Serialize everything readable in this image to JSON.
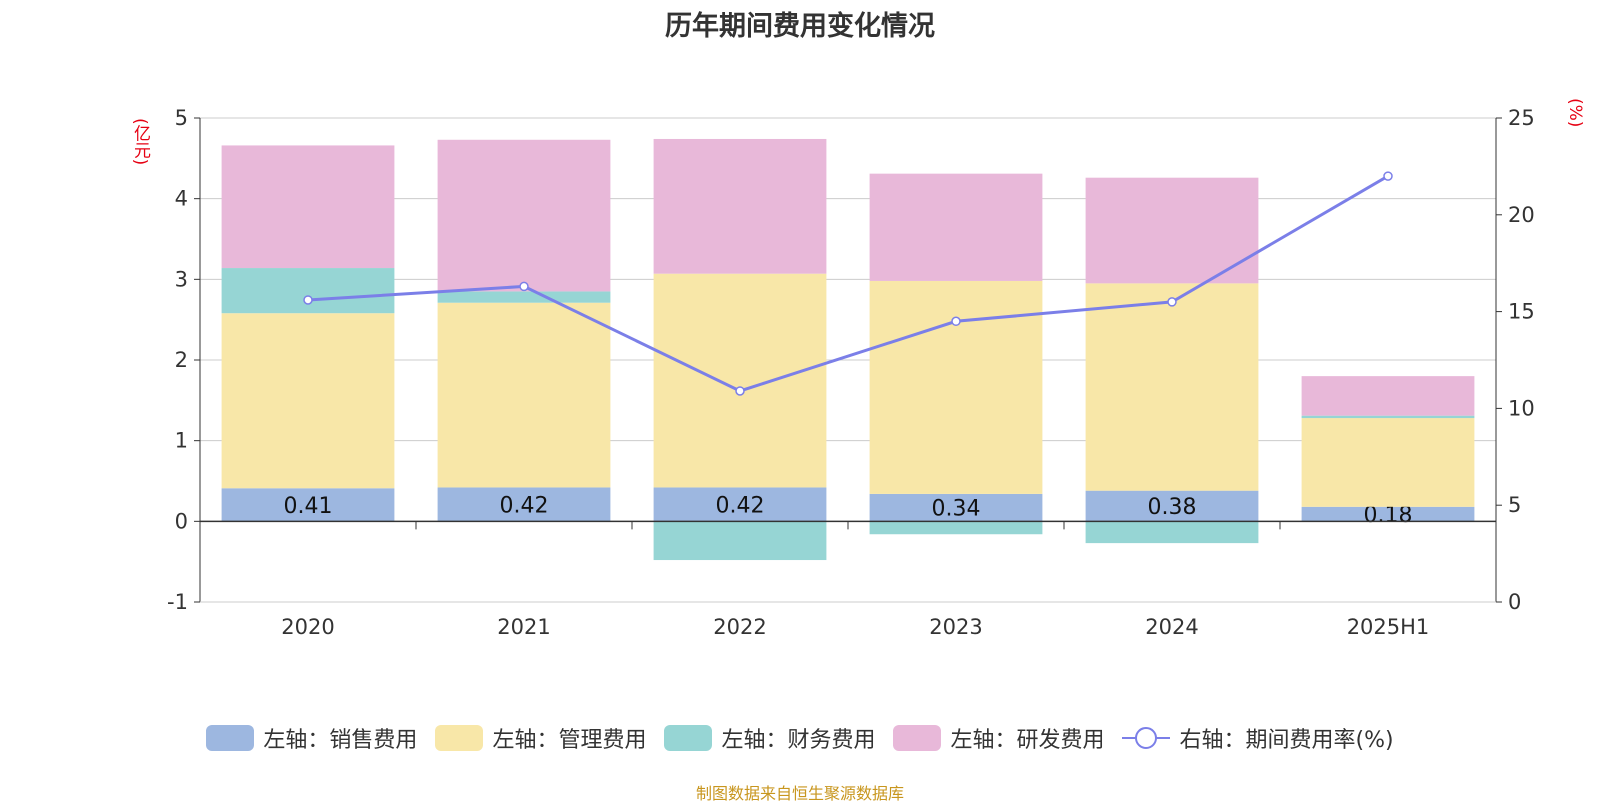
{
  "chart_data": {
    "type": "bar",
    "title": "历年期间费用变化情况",
    "categories": [
      "2020",
      "2021",
      "2022",
      "2023",
      "2024",
      "2025H1"
    ],
    "left_axis": {
      "unit": "(亿元)",
      "ylim": [
        -1,
        5
      ],
      "ticks": [
        "-1",
        "0",
        "1",
        "2",
        "3",
        "4",
        "5"
      ]
    },
    "right_axis": {
      "unit": "(%)",
      "ylim": [
        0,
        25
      ],
      "ticks": [
        "0",
        "5",
        "10",
        "15",
        "20",
        "25"
      ]
    },
    "series": [
      {
        "name": "左轴：销售费用",
        "type": "bar",
        "axis": "left",
        "color": "#9db7e0",
        "values": [
          0.41,
          0.42,
          0.42,
          0.34,
          0.38,
          0.18
        ],
        "labels": [
          "0.41",
          "0.42",
          "0.42",
          "0.34",
          "0.38",
          "0.18"
        ]
      },
      {
        "name": "左轴：管理费用",
        "type": "bar",
        "axis": "left",
        "color": "#f8e7a8",
        "values": [
          2.17,
          2.29,
          2.65,
          2.64,
          2.57,
          1.1
        ]
      },
      {
        "name": "左轴：财务费用",
        "type": "bar",
        "axis": "left",
        "color": "#96d5d4",
        "values": [
          0.56,
          0.14,
          -0.48,
          -0.16,
          -0.27,
          0.03
        ]
      },
      {
        "name": "左轴：研发费用",
        "type": "bar",
        "axis": "left",
        "color": "#e8b8d9",
        "values": [
          1.52,
          1.88,
          1.67,
          1.33,
          1.31,
          0.49
        ]
      },
      {
        "name": "右轴：期间费用率(%)",
        "type": "line",
        "axis": "right",
        "color": "#7b7fe8",
        "values": [
          15.6,
          16.3,
          10.9,
          14.5,
          15.5,
          22.0
        ]
      }
    ],
    "grid": true,
    "legend_position": "bottom"
  },
  "source_note": "制图数据来自恒生聚源数据库"
}
